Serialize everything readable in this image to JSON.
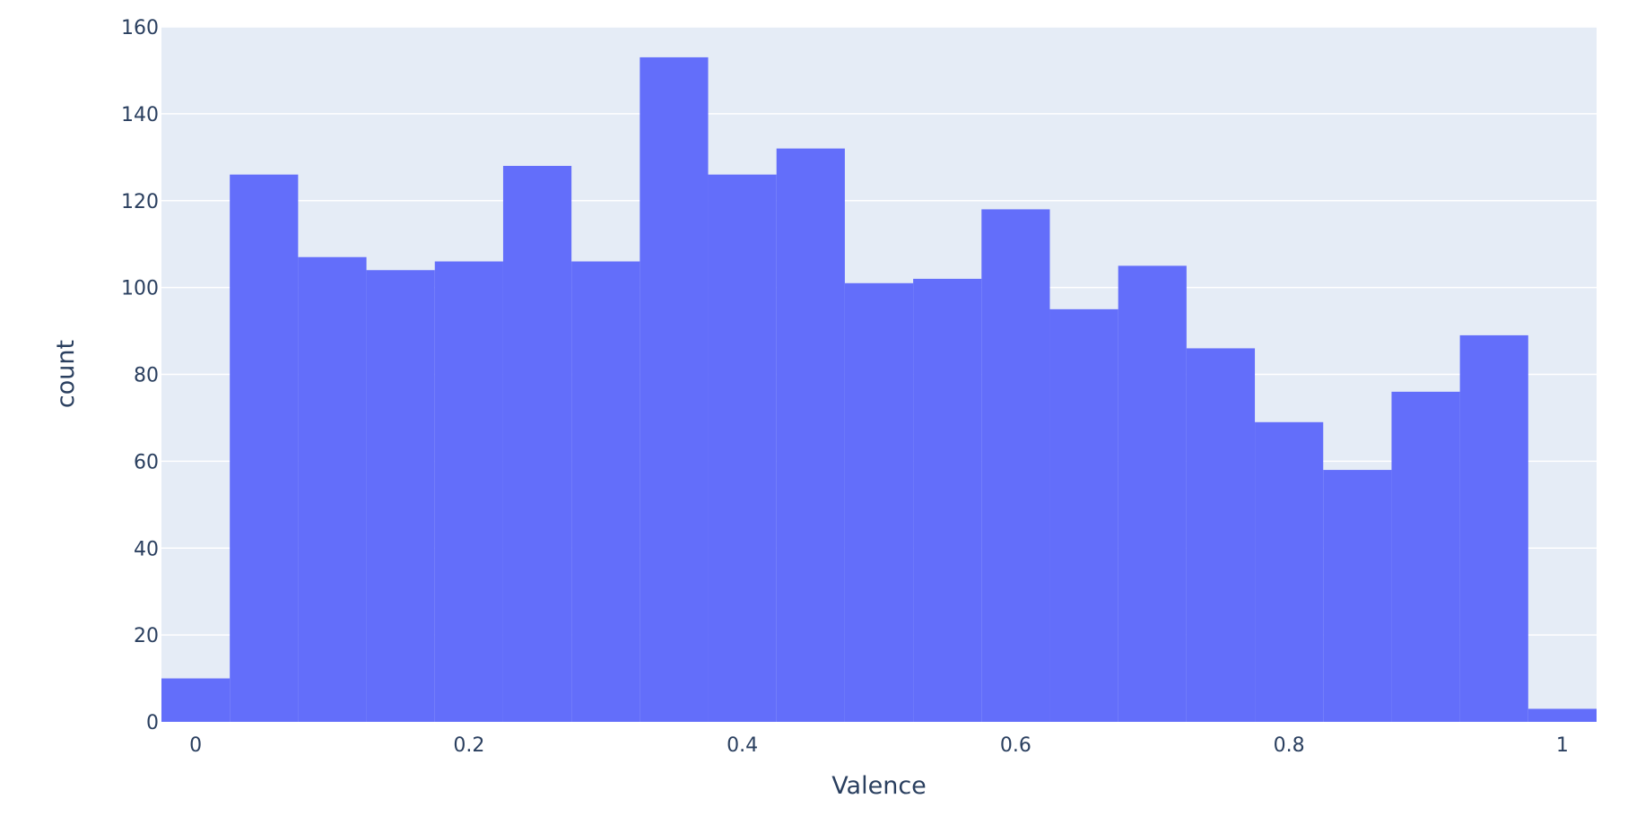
{
  "chart_data": {
    "type": "bar",
    "xlabel": "Valence",
    "ylabel": "count",
    "bin_edges": [
      -0.025,
      0.025,
      0.075,
      0.125,
      0.175,
      0.225,
      0.275,
      0.325,
      0.375,
      0.425,
      0.475,
      0.525,
      0.575,
      0.625,
      0.675,
      0.725,
      0.775,
      0.825,
      0.875,
      0.925,
      0.975,
      1.025
    ],
    "values": [
      10,
      126,
      107,
      104,
      106,
      128,
      106,
      153,
      126,
      132,
      101,
      102,
      118,
      95,
      105,
      86,
      69,
      58,
      76,
      89,
      3
    ],
    "xlim": [
      -0.025,
      1.025
    ],
    "ylim": [
      0,
      160
    ],
    "x_ticks": [
      0,
      0.2,
      0.4,
      0.6,
      0.8,
      1
    ],
    "x_tick_labels": [
      "0",
      "0.2",
      "0.4",
      "0.6",
      "0.8",
      "1"
    ],
    "y_ticks": [
      0,
      20,
      40,
      60,
      80,
      100,
      120,
      140,
      160
    ],
    "y_tick_labels": [
      "0",
      "20",
      "40",
      "60",
      "80",
      "100",
      "120",
      "140",
      "160"
    ],
    "grid": true,
    "colors": {
      "bar": "#636efa",
      "plot_background": "#e5ecf6",
      "text": "#2a3f5f"
    }
  }
}
